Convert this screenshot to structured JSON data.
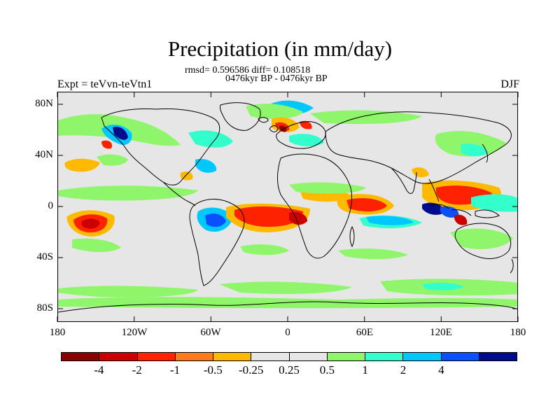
{
  "title": "Precipitation (in mm/day)",
  "stats": "rmsd= 0.596586 diff= 0.108518",
  "period": "0476kyr BP - 0476kyr BP",
  "expt": "Expt = teVvn-teVtn1",
  "season": "DJF",
  "axes": {
    "y_labels": [
      "80N",
      "40N",
      "0",
      "40S",
      "80S"
    ],
    "x_labels": [
      "180",
      "120W",
      "60W",
      "0",
      "60E",
      "120E",
      "180"
    ]
  },
  "colorbar": {
    "colors": [
      "#8b0000",
      "#cc0000",
      "#ff2200",
      "#ff7a1a",
      "#ffba00",
      "#e6e6e6",
      "#e6e6e6",
      "#8ff56b",
      "#33ffcc",
      "#00c8ff",
      "#0a50ff",
      "#000a8c"
    ],
    "labels": [
      "-4",
      "-2",
      "-1",
      "-0.5",
      "-0.25",
      "0.25",
      "0.5",
      "1",
      "2",
      "4"
    ]
  },
  "map_colors": {
    "background": "#e6e6e6",
    "light_green": "#8ff56b",
    "cyan": "#33ffcc",
    "sky_blue": "#00c8ff",
    "blue": "#0a50ff",
    "navy": "#000a8c",
    "yellow_orange": "#ffba00",
    "orange": "#ff7a1a",
    "red_orange": "#ff2200",
    "red": "#cc0000",
    "dark_red": "#8b0000"
  }
}
